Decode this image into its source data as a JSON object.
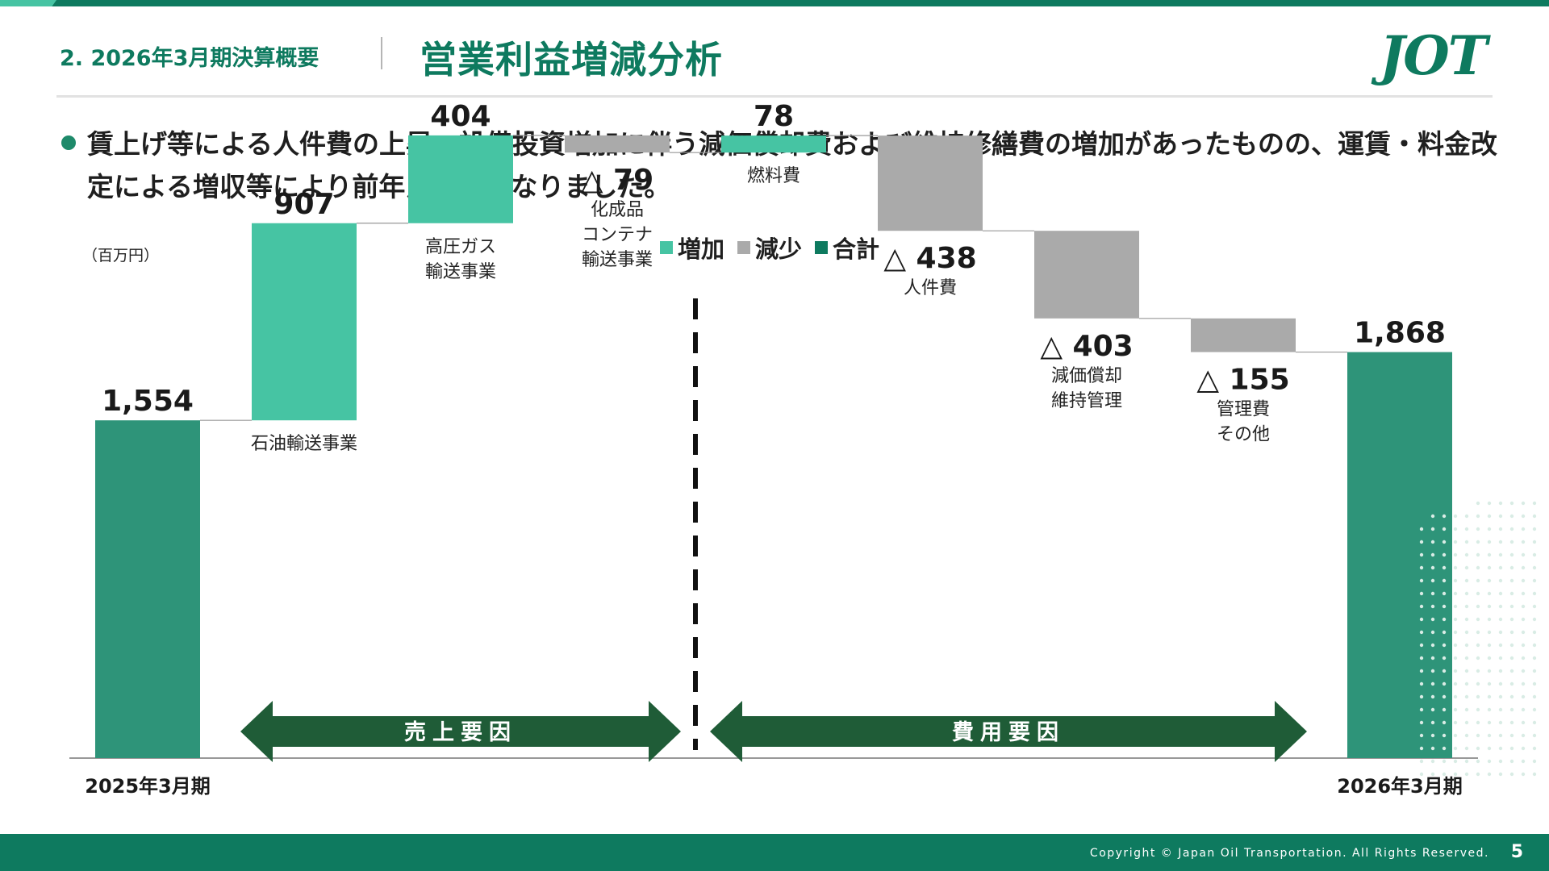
{
  "header": {
    "section": "2. 2026年3月期決算概要",
    "title": "営業利益増減分析",
    "logo": "JOT"
  },
  "bullet": "賃上げ等による人件費の上昇、設備投資増加に伴う減価償却費および維持修繕費の増加があったものの、運賃・料金改定による増収等により前年比増益となりました。",
  "footer": {
    "copyright": "Copyright © Japan Oil Transportation. All Rights Reserved.",
    "page": "5"
  },
  "colors": {
    "brand": "#0e7a5f",
    "increase": "#46c4a3",
    "decrease": "#aaaaaa",
    "total": "#2e9479",
    "arrow": "#1f5c37"
  },
  "chart_data": {
    "type": "bar",
    "subtype": "waterfall",
    "unit_label": "（百万円）",
    "legend": [
      {
        "label": "増加",
        "kind": "increase"
      },
      {
        "label": "減少",
        "kind": "decrease"
      },
      {
        "label": "合計",
        "kind": "total"
      }
    ],
    "steps": [
      {
        "kind": "total",
        "value": 1554,
        "value_label": "1,554",
        "category": [
          "2025年3月期"
        ]
      },
      {
        "kind": "increase",
        "value": 907,
        "value_label": "907",
        "category": [
          "石油輸送事業"
        ]
      },
      {
        "kind": "increase",
        "value": 404,
        "value_label": "404",
        "category": [
          "高圧ガス",
          "輸送事業"
        ]
      },
      {
        "kind": "decrease",
        "value": -79,
        "value_label": "△ 79",
        "category": [
          "化成品",
          "コンテナ",
          "輸送事業"
        ]
      },
      {
        "kind": "increase",
        "value": 78,
        "value_label": "78",
        "category": [
          "燃料費"
        ]
      },
      {
        "kind": "decrease",
        "value": -438,
        "value_label": "△ 438",
        "category": [
          "人件費"
        ]
      },
      {
        "kind": "decrease",
        "value": -403,
        "value_label": "△ 403",
        "category": [
          "減価償却",
          "維持管理"
        ]
      },
      {
        "kind": "decrease",
        "value": -155,
        "value_label": "△ 155",
        "category": [
          "管理費",
          "その他"
        ]
      },
      {
        "kind": "total",
        "value": 1868,
        "value_label": "1,868",
        "category": [
          "2026年3月期"
        ]
      }
    ],
    "groups": [
      {
        "label": "売上要因",
        "from_step": 1,
        "to_step": 3
      },
      {
        "label": "費用要因",
        "from_step": 4,
        "to_step": 7
      }
    ]
  }
}
